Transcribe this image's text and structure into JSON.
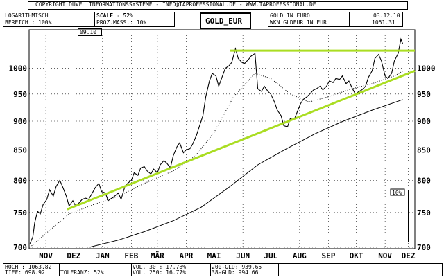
{
  "header": {
    "copyright": "COPYRIGHT  DUVEL INFORMATIONSSYSTEME - INFO@TAPROFESSIONAL.DE - WWW.TAPROFESSIONAL.DE",
    "scale_mode": "LOGARITHMISCH",
    "range": "BEREICH : 100%",
    "scale": "SCALE : 52%",
    "prozmass": "PROZ.MASS.: 10%",
    "symbol": "GOLD_EUR",
    "name": "GOLD IN EURO",
    "wkn": "WKN GLDEUR  IN EUR",
    "date": "03.12.10",
    "last_price": "1051.31",
    "range_date": "09.10"
  },
  "scale_marker": "10%",
  "footer": {
    "hoch": "HOCH : 1063.82",
    "tief": "TIEF:  698.92",
    "blank": "",
    "toleranz": "TOLERANZ: 52%",
    "vol30": "VOL. 30 : 17.78%",
    "vol250": "VOL. 250: 16.77%",
    "gld200": "200-GLD: 939.65",
    "gld38": "38-GLD:  994.66"
  },
  "colors": {
    "price": "#000000",
    "trendline": "#aadd22",
    "ma": "#000000",
    "grid": "#000000"
  },
  "chart_data": {
    "type": "line",
    "title": "GOLD_EUR",
    "xlabel": "",
    "ylabel": "",
    "y_scale": "log",
    "ylim": [
      698,
      1080
    ],
    "yticks": [
      700,
      750,
      800,
      850,
      900,
      950,
      1000
    ],
    "xlim": [
      "2009-10-28",
      "2010-12-17"
    ],
    "x_ticks": [
      {
        "label": "NOV",
        "date": "2009-11-15"
      },
      {
        "label": "DEZ",
        "date": "2009-12-15"
      },
      {
        "label": "JAN",
        "date": "2010-01-15"
      },
      {
        "label": "FEB",
        "date": "2010-02-15"
      },
      {
        "label": "MÄR",
        "date": "2010-03-15"
      },
      {
        "label": "APR",
        "date": "2010-04-15"
      },
      {
        "label": "MAI",
        "date": "2010-05-15"
      },
      {
        "label": "JUN",
        "date": "2010-06-15"
      },
      {
        "label": "JUL",
        "date": "2010-07-15"
      },
      {
        "label": "AUG",
        "date": "2010-08-15"
      },
      {
        "label": "SEP",
        "date": "2010-09-15"
      },
      {
        "label": "OKT",
        "date": "2010-10-15"
      },
      {
        "label": "NOV",
        "date": "2010-11-15"
      },
      {
        "label": "DEZ",
        "date": "2010-12-10"
      }
    ],
    "grid": true,
    "series": [
      {
        "id": "price",
        "style": "solid",
        "points": [
          [
            "2009-10-29",
            705
          ],
          [
            "2009-11-01",
            715
          ],
          [
            "2009-11-03",
            735
          ],
          [
            "2009-11-06",
            752
          ],
          [
            "2009-11-09",
            748
          ],
          [
            "2009-11-12",
            762
          ],
          [
            "2009-11-16",
            770
          ],
          [
            "2009-11-19",
            785
          ],
          [
            "2009-11-23",
            775
          ],
          [
            "2009-11-26",
            790
          ],
          [
            "2009-11-30",
            800
          ],
          [
            "2009-12-03",
            790
          ],
          [
            "2009-12-07",
            775
          ],
          [
            "2009-12-10",
            760
          ],
          [
            "2009-12-14",
            768
          ],
          [
            "2009-12-17",
            760
          ],
          [
            "2009-12-21",
            765
          ],
          [
            "2009-12-24",
            770
          ],
          [
            "2009-12-28",
            772
          ],
          [
            "2009-12-31",
            770
          ],
          [
            "2010-01-04",
            780
          ],
          [
            "2010-01-07",
            788
          ],
          [
            "2010-01-11",
            795
          ],
          [
            "2010-01-14",
            782
          ],
          [
            "2010-01-18",
            780
          ],
          [
            "2010-01-21",
            768
          ],
          [
            "2010-01-25",
            772
          ],
          [
            "2010-01-28",
            775
          ],
          [
            "2010-02-01",
            780
          ],
          [
            "2010-02-04",
            770
          ],
          [
            "2010-02-08",
            790
          ],
          [
            "2010-02-11",
            795
          ],
          [
            "2010-02-15",
            800
          ],
          [
            "2010-02-18",
            812
          ],
          [
            "2010-02-22",
            808
          ],
          [
            "2010-02-25",
            820
          ],
          [
            "2010-03-01",
            822
          ],
          [
            "2010-03-04",
            815
          ],
          [
            "2010-03-08",
            810
          ],
          [
            "2010-03-11",
            818
          ],
          [
            "2010-03-15",
            812
          ],
          [
            "2010-03-18",
            825
          ],
          [
            "2010-03-22",
            832
          ],
          [
            "2010-03-25",
            828
          ],
          [
            "2010-03-29",
            820
          ],
          [
            "2010-04-01",
            840
          ],
          [
            "2010-04-05",
            855
          ],
          [
            "2010-04-08",
            862
          ],
          [
            "2010-04-12",
            845
          ],
          [
            "2010-04-15",
            850
          ],
          [
            "2010-04-19",
            852
          ],
          [
            "2010-04-22",
            860
          ],
          [
            "2010-04-26",
            875
          ],
          [
            "2010-04-29",
            890
          ],
          [
            "2010-05-03",
            910
          ],
          [
            "2010-05-06",
            945
          ],
          [
            "2010-05-10",
            975
          ],
          [
            "2010-05-13",
            990
          ],
          [
            "2010-05-17",
            985
          ],
          [
            "2010-05-20",
            965
          ],
          [
            "2010-05-24",
            985
          ],
          [
            "2010-05-27",
            1000
          ],
          [
            "2010-05-31",
            1005
          ],
          [
            "2010-06-03",
            1012
          ],
          [
            "2010-06-07",
            1040
          ],
          [
            "2010-06-10",
            1020
          ],
          [
            "2010-06-14",
            1012
          ],
          [
            "2010-06-17",
            1010
          ],
          [
            "2010-06-21",
            1018
          ],
          [
            "2010-06-24",
            1025
          ],
          [
            "2010-06-28",
            1030
          ],
          [
            "2010-07-01",
            960
          ],
          [
            "2010-07-05",
            955
          ],
          [
            "2010-07-08",
            965
          ],
          [
            "2010-07-12",
            955
          ],
          [
            "2010-07-15",
            950
          ],
          [
            "2010-07-19",
            935
          ],
          [
            "2010-07-22",
            920
          ],
          [
            "2010-07-26",
            910
          ],
          [
            "2010-07-29",
            892
          ],
          [
            "2010-08-02",
            890
          ],
          [
            "2010-08-05",
            905
          ],
          [
            "2010-08-09",
            902
          ],
          [
            "2010-08-12",
            915
          ],
          [
            "2010-08-16",
            932
          ],
          [
            "2010-08-19",
            940
          ],
          [
            "2010-08-23",
            945
          ],
          [
            "2010-08-26",
            950
          ],
          [
            "2010-08-30",
            958
          ],
          [
            "2010-09-02",
            960
          ],
          [
            "2010-09-06",
            965
          ],
          [
            "2010-09-09",
            958
          ],
          [
            "2010-09-13",
            965
          ],
          [
            "2010-09-16",
            975
          ],
          [
            "2010-09-20",
            972
          ],
          [
            "2010-09-23",
            980
          ],
          [
            "2010-09-27",
            978
          ],
          [
            "2010-09-30",
            985
          ],
          [
            "2010-10-04",
            970
          ],
          [
            "2010-10-07",
            975
          ],
          [
            "2010-10-11",
            960
          ],
          [
            "2010-10-14",
            950
          ],
          [
            "2010-10-18",
            955
          ],
          [
            "2010-10-21",
            958
          ],
          [
            "2010-10-25",
            965
          ],
          [
            "2010-10-28",
            982
          ],
          [
            "2010-11-01",
            995
          ],
          [
            "2010-11-04",
            1020
          ],
          [
            "2010-11-08",
            1028
          ],
          [
            "2010-11-11",
            1015
          ],
          [
            "2010-11-15",
            985
          ],
          [
            "2010-11-18",
            980
          ],
          [
            "2010-11-22",
            990
          ],
          [
            "2010-11-25",
            1015
          ],
          [
            "2010-11-29",
            1030
          ],
          [
            "2010-12-02",
            1060
          ],
          [
            "2010-12-04",
            1050
          ]
        ]
      },
      {
        "id": "ma38",
        "style": "dotted",
        "points": [
          [
            "2009-10-29",
            700
          ],
          [
            "2009-11-20",
            725
          ],
          [
            "2009-12-10",
            748
          ],
          [
            "2010-01-05",
            762
          ],
          [
            "2010-02-01",
            775
          ],
          [
            "2010-03-01",
            795
          ],
          [
            "2010-04-01",
            815
          ],
          [
            "2010-04-25",
            840
          ],
          [
            "2010-05-15",
            880
          ],
          [
            "2010-06-05",
            945
          ],
          [
            "2010-06-28",
            990
          ],
          [
            "2010-07-15",
            980
          ],
          [
            "2010-08-05",
            950
          ],
          [
            "2010-08-25",
            935
          ],
          [
            "2010-09-15",
            945
          ],
          [
            "2010-10-10",
            960
          ],
          [
            "2010-11-01",
            970
          ],
          [
            "2010-11-25",
            985
          ],
          [
            "2010-12-04",
            994.66
          ]
        ]
      },
      {
        "id": "ma200",
        "style": "solid-thin",
        "points": [
          [
            "2010-01-01",
            700
          ],
          [
            "2010-02-01",
            710
          ],
          [
            "2010-03-01",
            722
          ],
          [
            "2010-04-01",
            738
          ],
          [
            "2010-05-01",
            758
          ],
          [
            "2010-06-01",
            790
          ],
          [
            "2010-07-01",
            825
          ],
          [
            "2010-08-01",
            852
          ],
          [
            "2010-09-01",
            878
          ],
          [
            "2010-10-01",
            900
          ],
          [
            "2010-11-01",
            920
          ],
          [
            "2010-12-04",
            939.65
          ]
        ]
      },
      {
        "id": "trend-up",
        "style": "trend",
        "points": [
          [
            "2009-12-08",
            755
          ],
          [
            "2010-12-17",
            995
          ]
        ]
      },
      {
        "id": "trend-horizontal",
        "style": "trend",
        "points": [
          [
            "2010-06-01",
            1036
          ],
          [
            "2010-12-17",
            1036
          ]
        ]
      }
    ]
  }
}
